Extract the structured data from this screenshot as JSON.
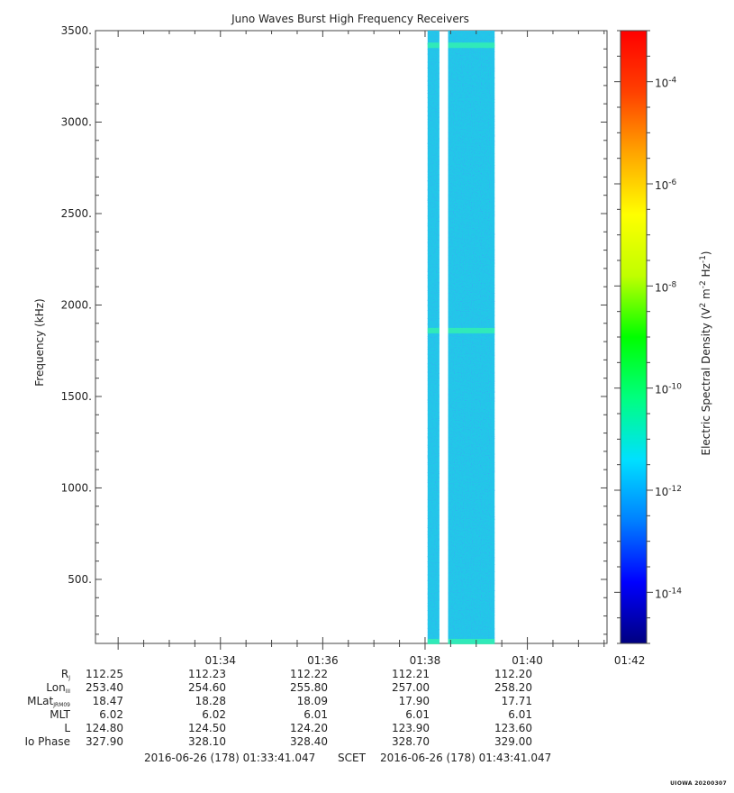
{
  "chart_data": {
    "type": "heatmap",
    "title": "Juno Waves Burst High Frequency Receivers",
    "ylabel": "Frequency (kHz)",
    "colorbar_label": "Electric Spectral Density (V^2 m^-2 Hz^-1)",
    "colorbar_label_parts": {
      "base": "Electric Spectral Density (V",
      "e1": "2",
      "m": " m",
      "e2": "-2",
      "hz": " Hz",
      "e3": "-1",
      "close": ")"
    },
    "ylim": [
      150,
      3500
    ],
    "y_ticks": [
      500,
      1000,
      1500,
      2000,
      2500,
      3000,
      3500
    ],
    "y_tick_labels": [
      "500.",
      "1000.",
      "1500.",
      "2000.",
      "2500.",
      "3000.",
      "3500."
    ],
    "x_range_minutes": [
      1.5569,
      11.5569
    ],
    "x_ticks_minutes": [
      4,
      6,
      8,
      10,
      12
    ],
    "x_tick_labels": [
      "01:34",
      "01:36",
      "01:38",
      "01:40",
      "01:42"
    ],
    "colorbar": {
      "scale": "log",
      "range_exponents": [
        -15,
        -3
      ],
      "ticks": [
        {
          "base": "10",
          "exp": "-4",
          "value": -4
        },
        {
          "base": "10",
          "exp": "-6",
          "value": -6
        },
        {
          "base": "10",
          "exp": "-8",
          "value": -8
        },
        {
          "base": "10",
          "exp": "-10",
          "value": -10
        },
        {
          "base": "10",
          "exp": "-12",
          "value": -12
        },
        {
          "base": "10",
          "exp": "-14",
          "value": -14
        }
      ],
      "colors": [
        "#000080",
        "#0000ff",
        "#0080ff",
        "#00e0ff",
        "#00ff80",
        "#00ff00",
        "#c0ff00",
        "#ffff00",
        "#ffa500",
        "#ff4000",
        "#ff0000"
      ]
    },
    "data_blocks": [
      {
        "t_start_min": 8.05,
        "t_end_min": 8.28,
        "level_exponent": -12
      },
      {
        "t_start_min": 8.45,
        "t_end_min": 9.36,
        "level_exponent": -12
      }
    ],
    "bands": [
      {
        "freq_khz": 3420,
        "level_exponent": -11
      },
      {
        "freq_khz": 1860,
        "level_exponent": -11
      },
      {
        "freq_khz": 160,
        "level_exponent": -11
      }
    ],
    "colors": {
      "fill_low": "#1a8cff",
      "fill_base": "#22c8e8",
      "band": "#33f0b0"
    }
  },
  "ephemeris": {
    "rows": [
      {
        "label": "R",
        "sub": "J",
        "values": [
          "112.25",
          "112.23",
          "112.22",
          "112.21",
          "112.20"
        ]
      },
      {
        "label": "Lon",
        "sub": "III",
        "values": [
          "253.40",
          "254.60",
          "255.80",
          "257.00",
          "258.20"
        ]
      },
      {
        "label": "MLat",
        "sub": "JRM09",
        "values": [
          "18.47",
          "18.28",
          "18.09",
          "17.90",
          "17.71"
        ]
      },
      {
        "label": "MLT",
        "sub": "",
        "values": [
          "6.02",
          "6.02",
          "6.01",
          "6.01",
          "6.01"
        ]
      },
      {
        "label": "L",
        "sub": "",
        "values": [
          "124.80",
          "124.50",
          "124.20",
          "123.90",
          "123.60"
        ]
      },
      {
        "label": "Io Phase",
        "sub": "",
        "values": [
          "327.90",
          "328.10",
          "328.40",
          "328.70",
          "329.00"
        ]
      }
    ]
  },
  "footer": {
    "start": "2016-06-26 (178) 01:33:41.047",
    "mid": "SCET",
    "end": "2016-06-26 (178) 01:43:41.047"
  },
  "watermark": "UIOWA 20200307"
}
